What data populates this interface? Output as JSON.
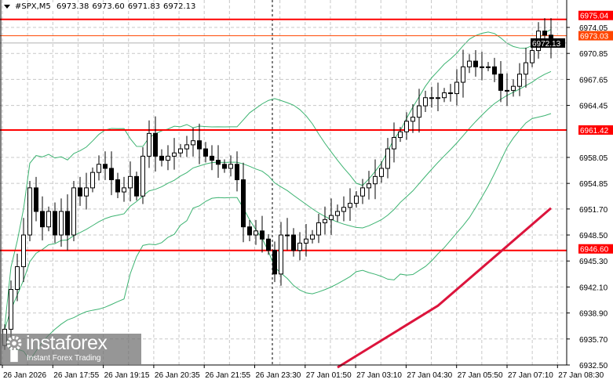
{
  "header": {
    "symbol": "#SPX,M5",
    "open": "6973.38",
    "high": "6973.60",
    "low": "6971.83",
    "close": "6972.13"
  },
  "watermark": {
    "name": "instaforex",
    "tagline": "Instant Forex Trading",
    "icon": "gear-figure-icon"
  },
  "colors": {
    "level_line": "#ff0000",
    "ask_line": "#ff4500",
    "bid_line": "#b0b0b0",
    "bands": "#3cb371",
    "moving_average": "#dc143c",
    "candle": "#000000"
  },
  "chart_data": {
    "type": "candlestick",
    "timeframe": "M5",
    "ylim": [
      6932.5,
      6975.9
    ],
    "grid": true,
    "y_ticks": [
      "6974.05",
      "6970.85",
      "6967.65",
      "6964.45",
      "6958.05",
      "6954.85",
      "6951.70",
      "6948.50",
      "6945.30",
      "6942.10",
      "6938.90",
      "6935.70",
      "6932.50"
    ],
    "x_ticks": [
      "26 Jan 2026",
      "26 Jan 17:55",
      "26 Jan 19:15",
      "26 Jan 20:35",
      "26 Jan 21:55",
      "26 Jan 23:30",
      "27 Jan 01:50",
      "27 Jan 03:10",
      "27 Jan 04:30",
      "27 Jan 05:50",
      "27 Jan 07:10",
      "27 Jan 08:30"
    ],
    "closes": [
      6936.9,
      6941.8,
      6944.6,
      6948.5,
      6954.3,
      6951.4,
      6949.5,
      6951.4,
      6948.5,
      6951.4,
      6948.5,
      6954.3,
      6953.3,
      6954.3,
      6956.2,
      6957.2,
      6956.7,
      6955.3,
      6953.8,
      6954.3,
      6955.7,
      6953.3,
      6958.2,
      6961.0,
      6958.2,
      6957.7,
      6958.2,
      6958.6,
      6959.1,
      6959.6,
      6960.1,
      6959.1,
      6958.2,
      6957.7,
      6957.2,
      6956.7,
      6957.2,
      6955.3,
      6949.5,
      6948.5,
      6949.0,
      6948.0,
      6946.6,
      6943.7,
      6948.5,
      6948.5,
      6946.6,
      6947.5,
      6948.0,
      6948.5,
      6950.0,
      6950.4,
      6950.9,
      6951.4,
      6951.9,
      6952.4,
      6953.3,
      6954.3,
      6954.8,
      6955.7,
      6956.7,
      6959.1,
      6960.5,
      6961.2,
      6962.5,
      6963.0,
      6964.4,
      6965.4,
      6965.4,
      6965.4,
      6966.0,
      6965.9,
      6967.3,
      6969.2,
      6969.9,
      6969.2,
      6969.2,
      6969.2,
      6968.3,
      6966.3,
      6966.3,
      6966.8,
      6968.3,
      6969.7,
      6971.2,
      6973.6,
      6973.1,
      6972.13
    ],
    "levels": [
      {
        "label": "6975.04",
        "value": 6975.04,
        "kind": "resistance"
      },
      {
        "label": "6961.42",
        "value": 6961.42,
        "kind": "level"
      },
      {
        "label": "6946.60",
        "value": 6946.6,
        "kind": "support"
      }
    ],
    "ask": {
      "label": "6973.03",
      "value": 6973.03
    },
    "bid": {
      "label": "6972.13",
      "value": 6972.13
    },
    "moving_average": [
      {
        "index": 53,
        "value": 6932.2
      },
      {
        "index": 69,
        "value": 6939.8
      },
      {
        "index": 87,
        "value": 6951.8
      }
    ],
    "bollinger": {
      "period": 20,
      "deviations": 2
    }
  }
}
